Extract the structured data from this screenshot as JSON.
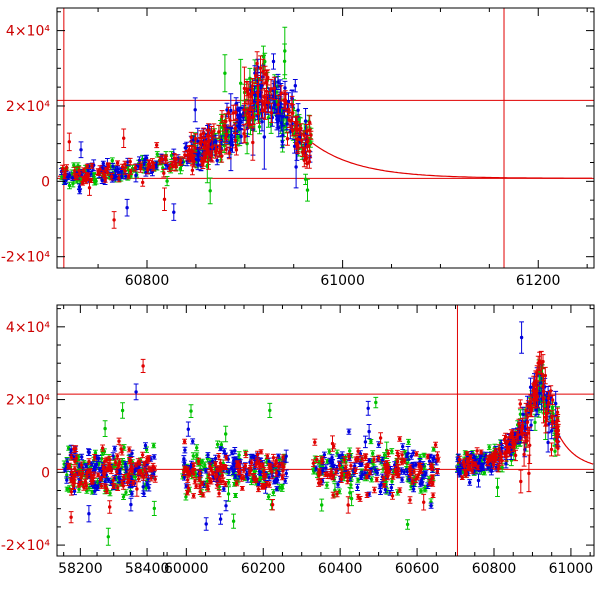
{
  "figure": {
    "bg": "#ffffff",
    "frame_color": "#000000",
    "x_label_color": "#000000",
    "y_label_color": "#cc0000",
    "accent_red": "#e00000"
  },
  "chart_data": [
    {
      "id": "top-panel",
      "type": "scatter",
      "title": "",
      "xlabel": "",
      "ylabel": "",
      "seed": 11,
      "ylim": [
        -23000,
        46000
      ],
      "segments": [
        {
          "x0": 60708,
          "x1": 61257,
          "f0": 0,
          "f1": 1
        }
      ],
      "x_major_ticks": [
        {
          "x": 60800,
          "label": "60800"
        },
        {
          "x": 61000,
          "label": "61000"
        },
        {
          "x": 61200,
          "label": "61200"
        }
      ],
      "x_minor_step": 50,
      "y_major_ticks": [
        {
          "y": -20000,
          "label": "-2×10⁴"
        },
        {
          "y": 0,
          "label": "0"
        },
        {
          "y": 20000,
          "label": "2×10⁴"
        },
        {
          "y": 40000,
          "label": "4×10⁴"
        }
      ],
      "y_minor_step": 5000,
      "ref_lines": {
        "horizontal_y": [
          21500,
          800
        ],
        "vertical_x": [
          60715,
          61165
        ],
        "color": "#e00000"
      },
      "model": {
        "color": "#e00000",
        "baseline": 800,
        "peak": 25500,
        "t0": 60921,
        "tau_rise": 55,
        "tau_decay": 48,
        "t_start": 60709,
        "t_end": 61256,
        "step": 2
      },
      "series": [
        {
          "name": "band-g",
          "color": "#00c300"
        },
        {
          "name": "band-b",
          "color": "#0000dd"
        },
        {
          "name": "band-r",
          "color": "#e00000"
        }
      ],
      "clusters": [
        {
          "x_min": 60712,
          "x_max": 60845,
          "n_per_series": 75,
          "mode": "model",
          "center": 800,
          "sigma": 1300,
          "model_sigma_frac": 0.08,
          "outlier_frac": 0.04,
          "outlier_sigma": 7000
        },
        {
          "x_min": 60845,
          "x_max": 60968,
          "n_per_series": 135,
          "mode": "model",
          "center": 800,
          "sigma": 1900,
          "model_sigma_frac": 0.12,
          "outlier_frac": 0.05,
          "outlier_sigma": 9000
        }
      ]
    },
    {
      "id": "bottom-panel",
      "type": "scatter",
      "title": "",
      "xlabel": "",
      "ylabel": "",
      "seed": 29,
      "ylim": [
        -23000,
        46000
      ],
      "segments": [
        {
          "x0": 58130,
          "x1": 58460,
          "f0": 0,
          "f1": 0.205
        },
        {
          "x0": 59950,
          "x1": 61060,
          "f0": 0.205,
          "f1": 1
        }
      ],
      "x_major_ticks": [
        {
          "x": 58200,
          "label": "58200"
        },
        {
          "x": 58400,
          "label": "58400"
        },
        {
          "x": 60000,
          "label": "60000"
        },
        {
          "x": 60200,
          "label": "60200"
        },
        {
          "x": 60400,
          "label": "60400"
        },
        {
          "x": 60600,
          "label": "60600"
        },
        {
          "x": 60800,
          "label": "60800"
        },
        {
          "x": 61000,
          "label": "61000"
        }
      ],
      "x_minor_step": 50,
      "y_major_ticks": [
        {
          "y": -20000,
          "label": "-2×10⁴"
        },
        {
          "y": 0,
          "label": "0"
        },
        {
          "y": 20000,
          "label": "2×10⁴"
        },
        {
          "y": 40000,
          "label": "4×10⁴"
        }
      ],
      "y_minor_step": 5000,
      "ref_lines": {
        "horizontal_y": [
          21500,
          800
        ],
        "vertical_x": [
          60705
        ],
        "color": "#e00000"
      },
      "model": {
        "color": "#e00000",
        "baseline": 800,
        "peak": 25500,
        "t0": 60921,
        "tau_rise": 55,
        "tau_decay": 48,
        "t_start": 60700,
        "t_end": 61059,
        "step": 2
      },
      "series": [
        {
          "name": "band-g",
          "color": "#00c300"
        },
        {
          "name": "band-b",
          "color": "#0000dd"
        },
        {
          "name": "band-r",
          "color": "#e00000"
        }
      ],
      "clusters": [
        {
          "x_min": 58150,
          "x_max": 58425,
          "n_per_series": 105,
          "mode": "baseline",
          "center": 500,
          "sigma": 3000,
          "outlier_frac": 0.035,
          "outlier_sigma": 11000
        },
        {
          "x_min": 59990,
          "x_max": 60260,
          "n_per_series": 105,
          "mode": "baseline",
          "center": 500,
          "sigma": 3100,
          "outlier_frac": 0.055,
          "outlier_sigma": 13000
        },
        {
          "x_min": 60330,
          "x_max": 60655,
          "n_per_series": 105,
          "mode": "baseline",
          "center": 500,
          "sigma": 3100,
          "outlier_frac": 0.055,
          "outlier_sigma": 13000
        },
        {
          "x_min": 60705,
          "x_max": 60968,
          "n_per_series": 125,
          "mode": "model",
          "center": 800,
          "sigma": 1500,
          "model_sigma_frac": 0.12,
          "outlier_frac": 0.04,
          "outlier_sigma": 9000
        }
      ]
    }
  ]
}
